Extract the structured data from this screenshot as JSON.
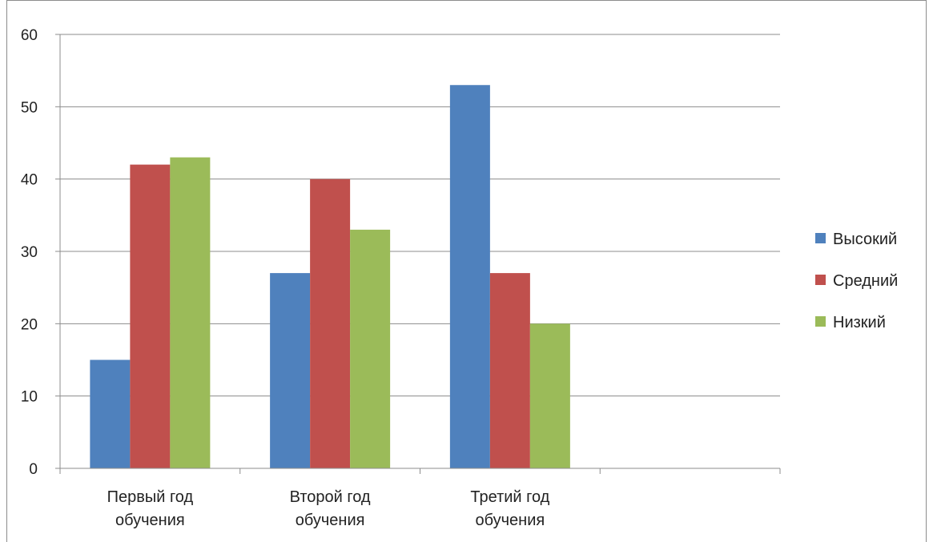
{
  "chart_data": {
    "type": "bar",
    "title": "",
    "xlabel": "",
    "ylabel": "",
    "categories": [
      [
        "Первый год",
        "обучения"
      ],
      [
        "Второй год",
        "обучения"
      ],
      [
        "Третий год",
        "обучения"
      ],
      [
        "",
        ""
      ]
    ],
    "series": [
      {
        "name": "Высокий",
        "color": "#4f81bd",
        "values": [
          15,
          27,
          53,
          null
        ]
      },
      {
        "name": "Средний",
        "color": "#c0504d",
        "values": [
          42,
          40,
          27,
          null
        ]
      },
      {
        "name": "Низкий",
        "color": "#9bbb59",
        "values": [
          43,
          33,
          20,
          null
        ]
      }
    ],
    "ylim": [
      0,
      60
    ],
    "yticks": [
      0,
      10,
      20,
      30,
      40,
      50,
      60
    ],
    "grid": true,
    "legend": "right"
  }
}
